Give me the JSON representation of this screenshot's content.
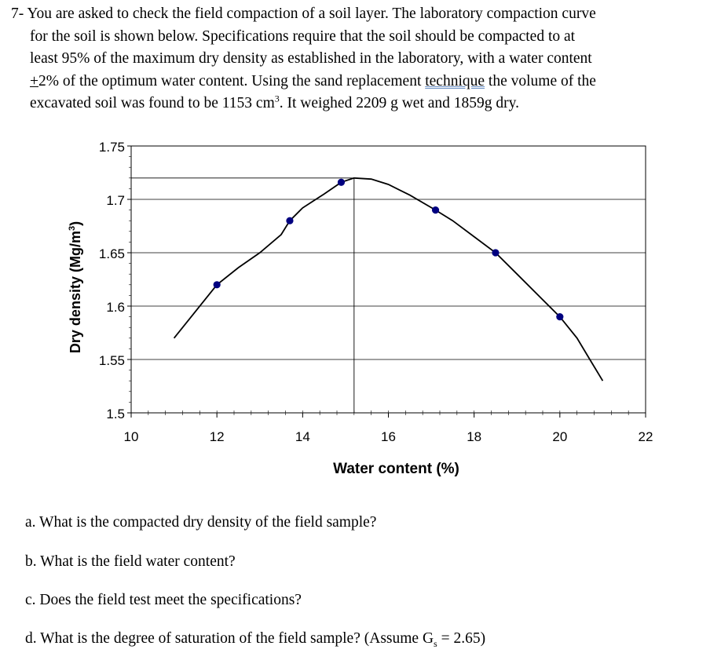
{
  "problem": {
    "line1": "7- You are asked to check the field compaction of a soil layer. The laboratory compaction curve",
    "line2": "for the soil is shown below. Specifications require that the soil should be compacted to at",
    "line3": "least 95% of the maximum dry density as established in the laboratory, with a water content",
    "line4_pm": "+",
    "line4_rest_a": "2% of the optimum water content. Using the sand replacement ",
    "line4_word": "technique",
    "line4_rest_b": " the volume of the",
    "line5_a": "excavated soil was found to be 1153 cm",
    "line5_sup": "3",
    "line5_b": ". It weighed 2209 g wet and 1859g dry."
  },
  "chart_data": {
    "type": "scatter",
    "xlabel": "Water content (%)",
    "ylabel_main": "Dry density (Mg/m",
    "ylabel_sup": "3",
    "ylabel_end": ")",
    "xlim": [
      10,
      22
    ],
    "ylim": [
      1.5,
      1.75
    ],
    "xticks": [
      "10",
      "12",
      "14",
      "16",
      "18",
      "20",
      "22"
    ],
    "yticks": [
      "1.75",
      "1.7",
      "1.65",
      "1.6",
      "1.55",
      "1.5"
    ],
    "grid": "horizontal",
    "points": [
      {
        "x": 12.0,
        "y": 1.62
      },
      {
        "x": 13.7,
        "y": 1.68
      },
      {
        "x": 14.9,
        "y": 1.716
      },
      {
        "x": 17.1,
        "y": 1.69
      },
      {
        "x": 18.5,
        "y": 1.65
      },
      {
        "x": 20.0,
        "y": 1.59
      }
    ],
    "curve": [
      {
        "x": 11.0,
        "y": 1.57
      },
      {
        "x": 11.5,
        "y": 1.595
      },
      {
        "x": 12.0,
        "y": 1.62
      },
      {
        "x": 12.5,
        "y": 1.636
      },
      {
        "x": 13.0,
        "y": 1.65
      },
      {
        "x": 13.5,
        "y": 1.667
      },
      {
        "x": 13.7,
        "y": 1.68
      },
      {
        "x": 14.0,
        "y": 1.692
      },
      {
        "x": 14.5,
        "y": 1.705
      },
      {
        "x": 14.9,
        "y": 1.716
      },
      {
        "x": 15.2,
        "y": 1.72
      },
      {
        "x": 15.6,
        "y": 1.719
      },
      {
        "x": 16.0,
        "y": 1.714
      },
      {
        "x": 16.5,
        "y": 1.704
      },
      {
        "x": 17.1,
        "y": 1.69
      },
      {
        "x": 17.5,
        "y": 1.68
      },
      {
        "x": 18.0,
        "y": 1.665
      },
      {
        "x": 18.5,
        "y": 1.65
      },
      {
        "x": 19.0,
        "y": 1.63
      },
      {
        "x": 19.5,
        "y": 1.61
      },
      {
        "x": 20.0,
        "y": 1.59
      },
      {
        "x": 20.4,
        "y": 1.57
      },
      {
        "x": 20.7,
        "y": 1.55
      },
      {
        "x": 21.0,
        "y": 1.53
      }
    ],
    "optimum": {
      "x": 15.2,
      "y": 1.72
    },
    "curve_color": "#000000",
    "point_color": "#000080"
  },
  "questions": {
    "a": "a. What is the compacted dry density of the field sample?",
    "b": "b. What is the field water content?",
    "c": "c. Does the field test meet the specifications?",
    "d_a": "d. What is the degree of saturation of the field sample? (Assume G",
    "d_sub": "s",
    "d_b": " = 2.65)"
  }
}
